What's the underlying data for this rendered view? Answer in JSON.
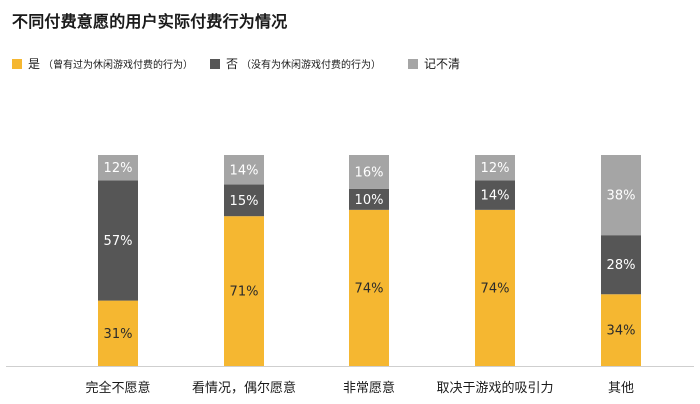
{
  "chart_data": {
    "type": "bar",
    "stacked": true,
    "normalized": true,
    "title": "不同付费意愿的用户实际付费行为情况",
    "categories": [
      "完全不愿意",
      "看情况，偶尔愿意",
      "非常愿意",
      "取决于游戏的吸引力",
      "其他"
    ],
    "series": [
      {
        "name": "是",
        "note": "（曾有过为休闲游戏付费的行为）",
        "color": "#F5B731",
        "values": [
          31,
          71,
          74,
          74,
          34
        ]
      },
      {
        "name": "否",
        "note": "（没有为休闲游戏付费的行为）",
        "color": "#565656",
        "values": [
          57,
          15,
          10,
          14,
          28
        ]
      },
      {
        "name": "记不清",
        "note": "",
        "color": "#A5A5A5",
        "values": [
          12,
          14,
          16,
          12,
          38
        ]
      }
    ],
    "value_suffix": "%",
    "legend_position": "top-left",
    "grid": false
  }
}
